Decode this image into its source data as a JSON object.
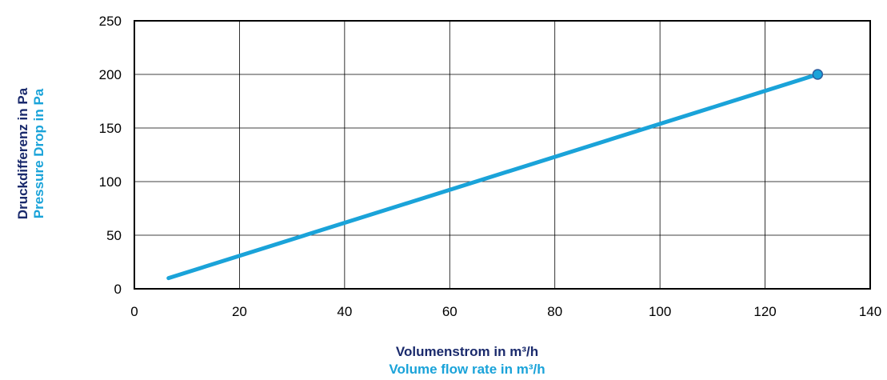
{
  "chart_data": {
    "type": "line",
    "xlabel_de": "Volumenstrom in m³/h",
    "xlabel_en": "Volume flow rate in m³/h",
    "ylabel_de": "Druckdifferenz in Pa",
    "ylabel_en": "Pressure Drop in Pa",
    "xlim": [
      0,
      140
    ],
    "ylim": [
      0,
      250
    ],
    "xticks": [
      "0",
      "20",
      "40",
      "60",
      "80",
      "100",
      "120",
      "140"
    ],
    "yticks": [
      "0",
      "50",
      "100",
      "150",
      "200",
      "250"
    ],
    "grid": true,
    "series": [
      {
        "x": [
          6.5,
          130
        ],
        "y": [
          10,
          200
        ],
        "color": "#1aa3d9",
        "end_marker": true
      }
    ]
  },
  "colors": {
    "label_dark": "#1a2a6c",
    "label_light": "#1aa3d9",
    "line": "#1aa3d9",
    "marker_stroke": "#2b5c9e"
  }
}
